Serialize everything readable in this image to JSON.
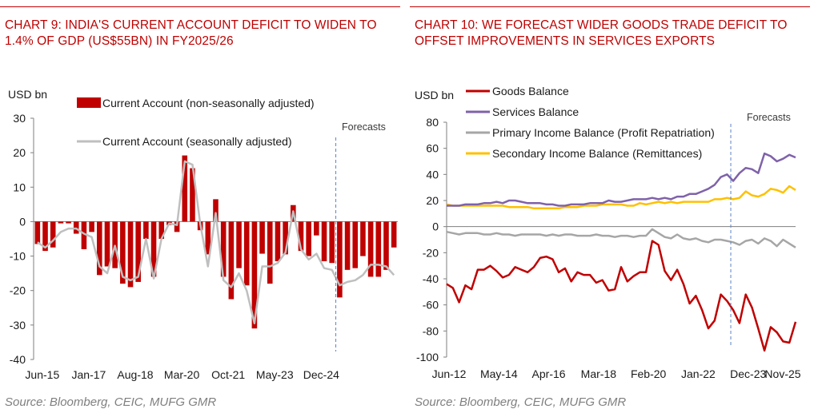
{
  "charts": [
    {
      "title": "CHART 9: INDIA'S CURRENT ACCOUNT DEFICIT TO WIDEN TO 1.4% OF GDP (US$55BN) IN FY2025/26",
      "source": "Source: Bloomberg, CEIC, MUFG GMR",
      "unit_label": "USD bn",
      "forecast_label": "Forecasts"
    },
    {
      "title": "CHART 10: WE FORECAST WIDER GOODS TRADE DEFICIT TO OFFSET IMPROVEMENTS IN SERVICES EXPORTS",
      "source": "Source: Bloomberg, CEIC, MUFG GMR",
      "unit_label": "USD bn",
      "forecast_label": "Forecasts"
    }
  ],
  "colors": {
    "accent": "#c00000",
    "bar": "#c00000",
    "sa_line": "#bfbfbf",
    "goods": "#c00000",
    "services": "#7f62a9",
    "primary": "#a6a6a6",
    "secondary": "#ffc000",
    "forecast_line": "#5b84c4"
  },
  "chart_data": [
    {
      "type": "bar",
      "x_tick_labels": [
        "Jun-15",
        "Jan-17",
        "Aug-18",
        "Mar-20",
        "Oct-21",
        "May-23",
        "Dec-24"
      ],
      "y_ticks": [
        30,
        20,
        10,
        0,
        -10,
        -20,
        -30,
        -40
      ],
      "ylim": [
        -40,
        30
      ],
      "quarters_start": "Jun-15",
      "forecast_start_index": 39,
      "series": [
        {
          "name": "Current Account (non-seasonally adjusted)",
          "kind": "bar",
          "values": [
            -6.5,
            -8.5,
            -7.5,
            -0.5,
            -0.5,
            -3.5,
            -8,
            -3,
            -15.5,
            -13,
            -13.5,
            -18,
            -19,
            -17.5,
            -5,
            -16,
            -5,
            -1,
            -3,
            19.2,
            15.5,
            -2.5,
            -9.5,
            6.5,
            -16,
            -22.5,
            -13.5,
            -18.5,
            -31,
            -9.3,
            -18,
            -11.5,
            -9.5,
            4.8,
            -8.5,
            -10,
            -4,
            -11.5,
            -12,
            -22,
            -14,
            -13.5,
            -10,
            -16,
            -16,
            -14,
            -7.5
          ]
        },
        {
          "name": "Current Account (seasonally adjusted)",
          "kind": "line",
          "values": [
            -6,
            -7.5,
            -5.5,
            -3,
            -2,
            -2,
            -3.5,
            -4.5,
            -13,
            -15,
            -7,
            -16,
            -17,
            -16,
            -5,
            -16.5,
            -5,
            -0.5,
            -1,
            17.5,
            16.5,
            -0.5,
            -13,
            2.5,
            -17,
            -19,
            -15,
            -20,
            -29.5,
            -13,
            -13,
            -12,
            -9,
            3,
            -8,
            -11,
            -9.3,
            -13.5,
            -14,
            -18.5,
            -17.5,
            -17,
            -15.5,
            -12.5,
            -12.5,
            -13,
            -15.5
          ]
        }
      ]
    },
    {
      "type": "line",
      "x_tick_labels": [
        "Jun-12",
        "May-14",
        "Apr-16",
        "Mar-18",
        "Feb-20",
        "Jan-22",
        "Dec-23",
        "Nov-25"
      ],
      "y_ticks": [
        80,
        60,
        40,
        20,
        0,
        -20,
        -40,
        -60,
        -80,
        -100
      ],
      "ylim": [
        -100,
        80
      ],
      "quarters_start": "Jun-12",
      "forecast_start_index": 46,
      "series": [
        {
          "name": "Goods Balance",
          "values": [
            -44,
            -47,
            -58,
            -45,
            -48,
            -33,
            -33,
            -30,
            -34,
            -39,
            -37,
            -31,
            -33,
            -35,
            -31,
            -24,
            -23,
            -25,
            -35,
            -32,
            -42,
            -35,
            -37,
            -37,
            -43,
            -41,
            -49,
            -48,
            -31,
            -42,
            -38,
            -35,
            -35,
            -11,
            -14,
            -34,
            -41,
            -33,
            -44,
            -59,
            -53,
            -64,
            -78,
            -72,
            -52,
            -57,
            -64,
            -74,
            -52,
            -62,
            -78,
            -95,
            -77,
            -81,
            -88,
            -89,
            -73
          ]
        },
        {
          "name": "Services Balance",
          "values": [
            16,
            16,
            16,
            17,
            17,
            17,
            18,
            18,
            19,
            18,
            20,
            20,
            19,
            18,
            18,
            18,
            17,
            17,
            16,
            16,
            17,
            17,
            17,
            18,
            18,
            18,
            20,
            19,
            19,
            20,
            21,
            21,
            21,
            22,
            21,
            22,
            21,
            23,
            23,
            25,
            25,
            27,
            29,
            32,
            38,
            40,
            35,
            41,
            45,
            44,
            41,
            56,
            54,
            50,
            52,
            55,
            53
          ]
        },
        {
          "name": "Primary Income Balance (Profit Repatriation)",
          "values": [
            -4,
            -5,
            -6,
            -5,
            -5,
            -5,
            -6,
            -6,
            -5,
            -6,
            -6,
            -7,
            -6,
            -6,
            -6,
            -6,
            -7,
            -6,
            -7,
            -6,
            -6,
            -7,
            -7,
            -7,
            -6,
            -7,
            -7,
            -8,
            -7,
            -7,
            -8,
            -7,
            -7,
            -2,
            -5,
            -8,
            -9,
            -6,
            -9,
            -10,
            -9,
            -11,
            -12,
            -10,
            -10,
            -11,
            -12,
            -14,
            -11,
            -10,
            -13,
            -9,
            -11,
            -15,
            -10,
            -13,
            -16
          ]
        },
        {
          "name": "Secondary Income Balance (Remittances)",
          "values": [
            17,
            16,
            16,
            16,
            16,
            16,
            16,
            16,
            16,
            16,
            15,
            15,
            15,
            15,
            14,
            14,
            14,
            14,
            14,
            15,
            15,
            15,
            16,
            16,
            16,
            17,
            17,
            17,
            17,
            16,
            16,
            18,
            17,
            18,
            19,
            18,
            19,
            18,
            19,
            19,
            19,
            19,
            19,
            21,
            21,
            22,
            21,
            22,
            27,
            24,
            23,
            25,
            29,
            28,
            26,
            31,
            28
          ]
        }
      ]
    }
  ]
}
